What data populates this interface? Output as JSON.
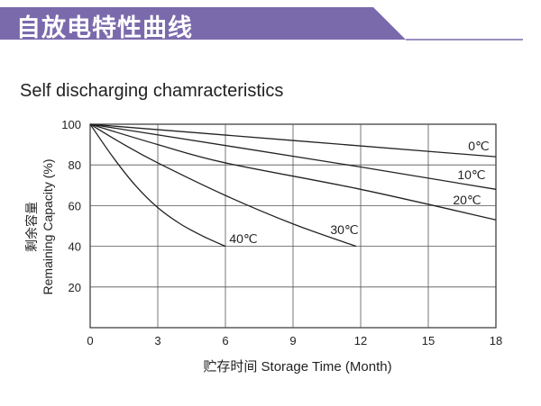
{
  "header": {
    "title": "自放电特性曲线",
    "banner_color": "#7a6aac"
  },
  "chart_data": {
    "type": "line",
    "title": "Self discharging chamracteristics",
    "xlabel": "贮存时间 Storage Time (Month)",
    "ylabel_cn": "剩余容量",
    "ylabel": "Remaining Capacity (%)",
    "xlim": [
      0,
      18
    ],
    "ylim": [
      0,
      100
    ],
    "xticks": [
      0,
      3,
      6,
      9,
      12,
      15,
      18
    ],
    "yticks": [
      20,
      40,
      60,
      80,
      100
    ],
    "grid": true,
    "series": [
      {
        "name": "0℃",
        "x": [
          0,
          18
        ],
        "y": [
          100,
          84
        ]
      },
      {
        "name": "10℃",
        "x": [
          0,
          12,
          18
        ],
        "y": [
          100,
          79,
          68
        ]
      },
      {
        "name": "20℃",
        "x": [
          0,
          3,
          6,
          12,
          18
        ],
        "y": [
          100,
          90,
          81,
          68,
          53
        ]
      },
      {
        "name": "30℃",
        "x": [
          0,
          1.5,
          3,
          6,
          9,
          11.8
        ],
        "y": [
          100,
          90,
          81,
          65,
          51,
          40
        ]
      },
      {
        "name": "40℃",
        "x": [
          0,
          1,
          2,
          3,
          4,
          5,
          6
        ],
        "y": [
          100,
          84,
          70,
          59,
          51,
          45,
          40
        ]
      }
    ]
  }
}
